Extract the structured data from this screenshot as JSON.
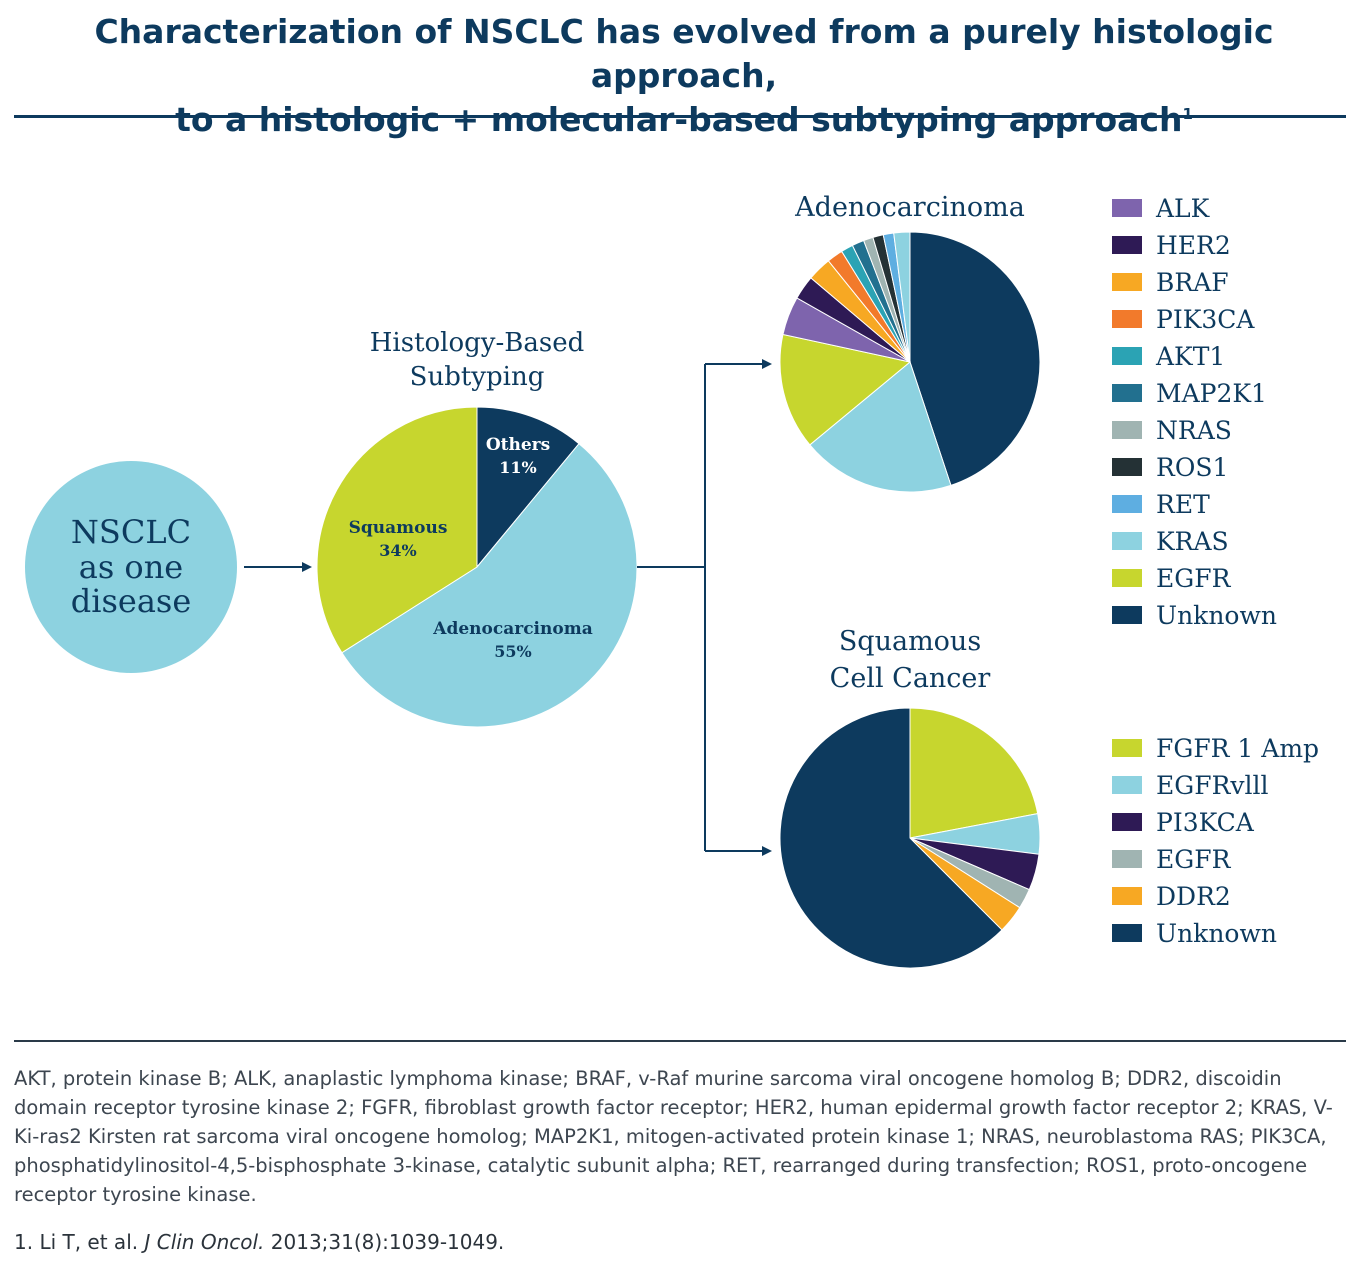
{
  "header": {
    "title_line1": "Characterization of NSCLC has evolved from a purely histologic approach,",
    "title_line2": "to a histologic + molecular-based subtyping approach",
    "title_superscript": "1"
  },
  "diagram": {
    "disease_circle": {
      "line1": "NSCLC",
      "line2": "as one",
      "line3": "disease",
      "color": "#8dd2e0"
    },
    "histology_title": {
      "line1": "Histology-Based",
      "line2": "Subtyping"
    },
    "adeno_title": "Adenocarcinoma",
    "squamous_title": {
      "line1": "Squamous",
      "line2": "Cell Cancer"
    },
    "arrow_color": "#0d3a5e"
  },
  "chart_data": [
    {
      "type": "pie",
      "name": "histology",
      "slices": [
        {
          "label": "Others",
          "value": 11,
          "pct_label": "11%",
          "color": "#0d3a5e",
          "label_color": "#ffffff"
        },
        {
          "label": "Adenocarcinoma",
          "value": 55,
          "pct_label": "55%",
          "color": "#8dd2e0",
          "label_color": "#0d3a5e"
        },
        {
          "label": "Squamous",
          "value": 34,
          "pct_label": "34%",
          "color": "#c7d62e",
          "label_color": "#0d3a5e"
        }
      ]
    },
    {
      "type": "pie",
      "name": "adenocarcinoma",
      "title": "Adenocarcinoma",
      "slices": [
        {
          "label": "Unknown",
          "value": 44.9,
          "color": "#0d3a5e"
        },
        {
          "label": "KRAS",
          "value": 19.1,
          "color": "#8dd2e0"
        },
        {
          "label": "EGFR",
          "value": 14.4,
          "color": "#c7d62e"
        },
        {
          "label": "ALK",
          "value": 4.8,
          "color": "#7e64ad"
        },
        {
          "label": "HER2",
          "value": 3.0,
          "color": "#2e1a55"
        },
        {
          "label": "BRAF",
          "value": 3.0,
          "color": "#f7a823"
        },
        {
          "label": "PIK3CA",
          "value": 2.0,
          "color": "#f27a2b"
        },
        {
          "label": "AKT1",
          "value": 1.5,
          "color": "#2ba3b4"
        },
        {
          "label": "MAP2K1",
          "value": 1.5,
          "color": "#22708f"
        },
        {
          "label": "NRAS",
          "value": 1.2,
          "color": "#a0b4b2"
        },
        {
          "label": "ROS1",
          "value": 1.3,
          "color": "#243135"
        },
        {
          "label": "RET",
          "value": 1.3,
          "color": "#5eaee1"
        },
        {
          "label": "KRAS",
          "value": 2.0,
          "color": "#8dd2e0"
        }
      ],
      "legend": [
        {
          "label": "ALK",
          "color": "#7e64ad"
        },
        {
          "label": "HER2",
          "color": "#2e1a55"
        },
        {
          "label": "BRAF",
          "color": "#f7a823"
        },
        {
          "label": "PIK3CA",
          "color": "#f27a2b"
        },
        {
          "label": "AKT1",
          "color": "#2ba3b4"
        },
        {
          "label": "MAP2K1",
          "color": "#22708f"
        },
        {
          "label": "NRAS",
          "color": "#a0b4b2"
        },
        {
          "label": "ROS1",
          "color": "#243135"
        },
        {
          "label": "RET",
          "color": "#5eaee1"
        },
        {
          "label": "KRAS",
          "color": "#8dd2e0"
        },
        {
          "label": "EGFR",
          "color": "#c7d62e"
        },
        {
          "label": "Unknown",
          "color": "#0d3a5e"
        }
      ]
    },
    {
      "type": "pie",
      "name": "squamous",
      "title": "Squamous Cell Cancer",
      "slices": [
        {
          "label": "FGFR 1 Amp",
          "value": 22,
          "color": "#c7d62e"
        },
        {
          "label": "EGFRvlll",
          "value": 5,
          "color": "#8dd2e0"
        },
        {
          "label": "PI3KCA",
          "value": 4.5,
          "color": "#2e1a55"
        },
        {
          "label": "EGFR",
          "value": 2.5,
          "color": "#a0b4b2"
        },
        {
          "label": "DDR2",
          "value": 3.5,
          "color": "#f7a823"
        },
        {
          "label": "Unknown",
          "value": 62.5,
          "color": "#0d3a5e"
        }
      ],
      "legend": [
        {
          "label": "FGFR 1 Amp",
          "color": "#c7d62e"
        },
        {
          "label": "EGFRvlll",
          "color": "#8dd2e0"
        },
        {
          "label": "PI3KCA",
          "color": "#2e1a55"
        },
        {
          "label": "EGFR",
          "color": "#a0b4b2"
        },
        {
          "label": "DDR2",
          "color": "#f7a823"
        },
        {
          "label": "Unknown",
          "color": "#0d3a5e"
        }
      ]
    }
  ],
  "footer": {
    "abbreviations": "AKT, protein kinase B; ALK, anaplastic lymphoma kinase; BRAF, v-Raf murine sarcoma viral oncogene homolog B; DDR2, discoidin domain receptor tyrosine kinase 2; FGFR, fibroblast growth factor receptor; HER2, human epidermal growth factor receptor 2; KRAS, V-Ki-ras2 Kirsten rat sarcoma viral oncogene homolog; MAP2K1, mitogen-activated protein kinase 1; NRAS, neuroblastoma RAS; PIK3CA, phosphatidylinositol-4,5-bisphosphate 3-kinase, catalytic subunit alpha; RET, rearranged during transfection; ROS1, proto-oncogene receptor tyrosine kinase.",
    "reference_prefix": "1. Li T, et al. ",
    "reference_journal": "J Clin Oncol.",
    "reference_suffix": " 2013;31(8):1039-1049."
  }
}
